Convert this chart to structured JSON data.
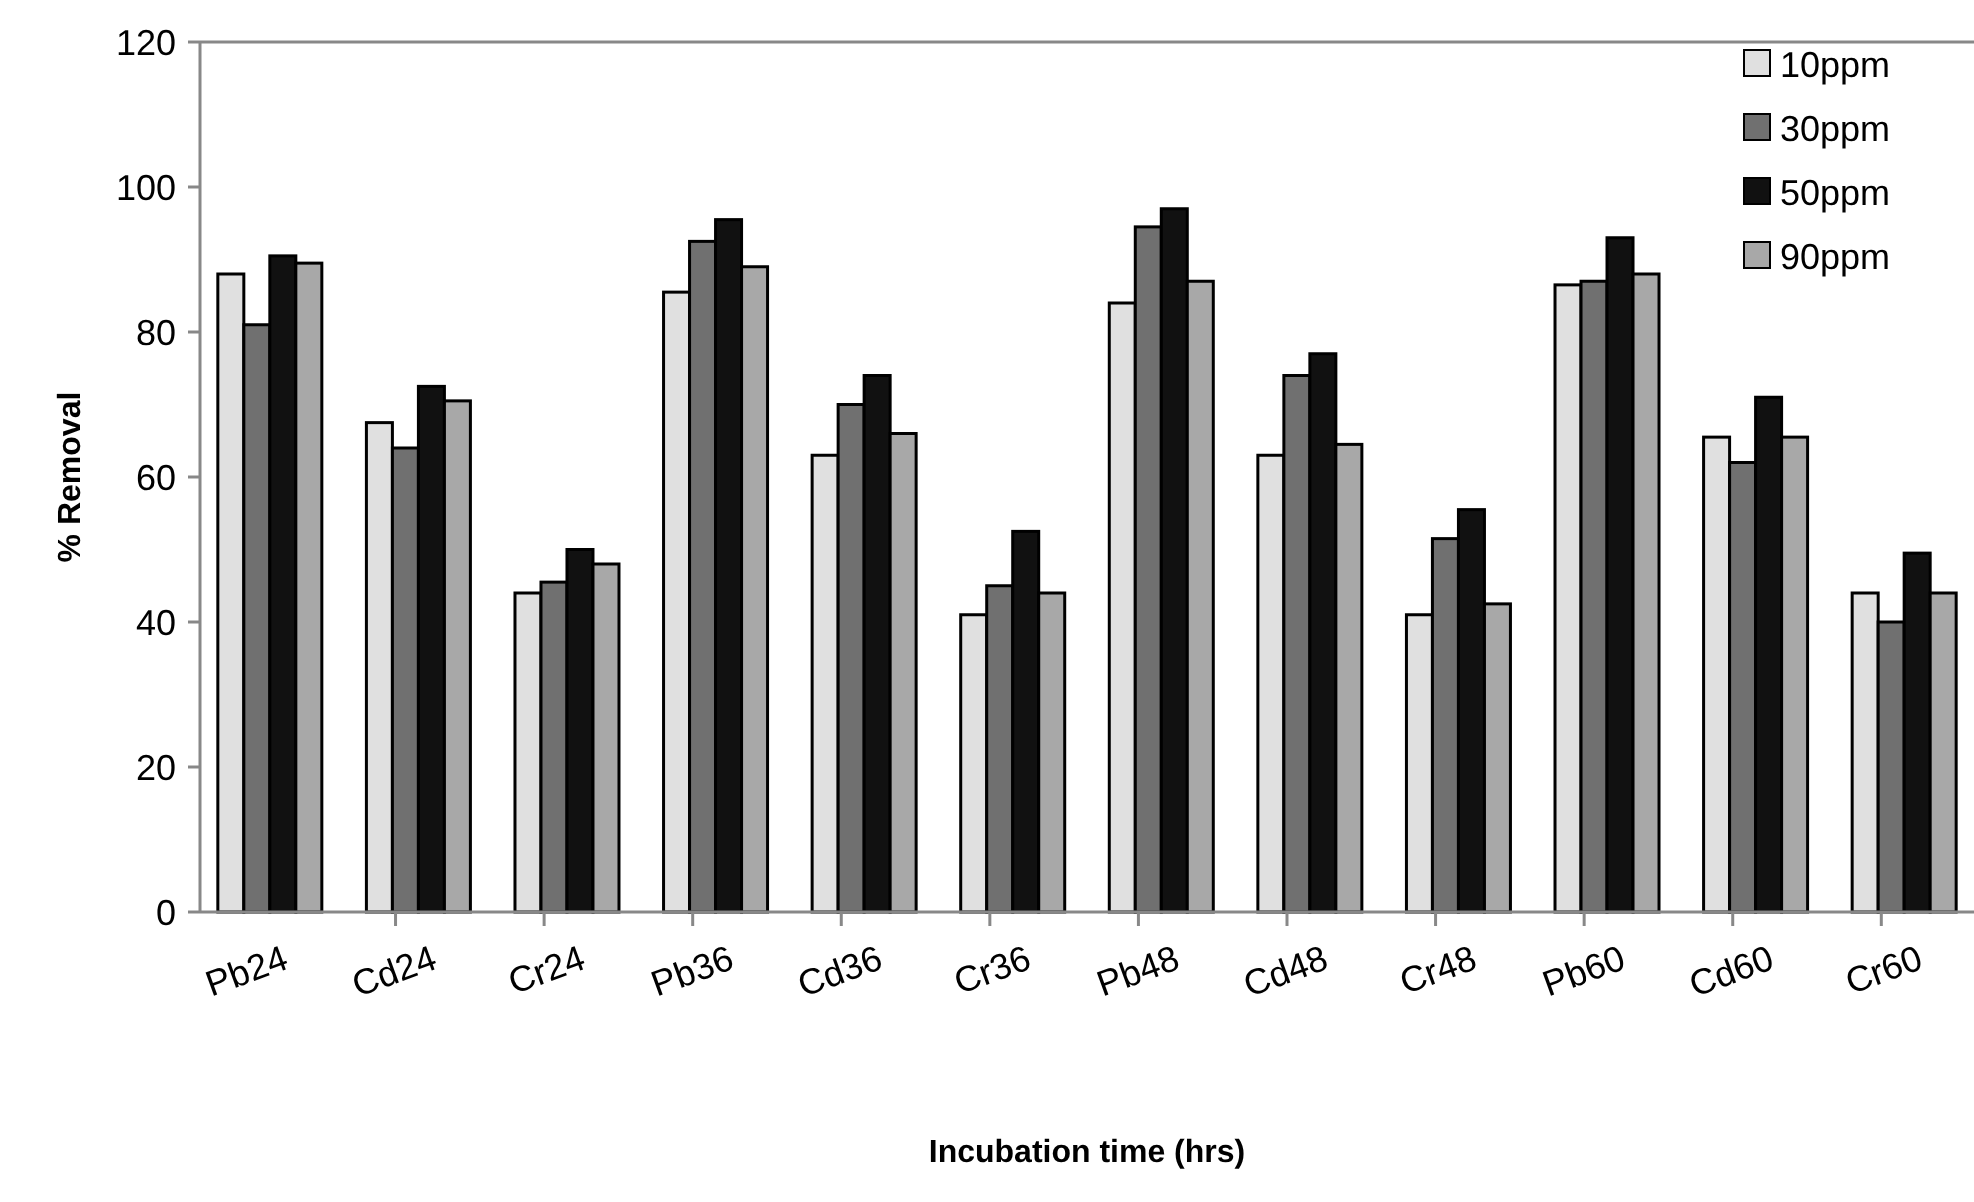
{
  "chart_data": {
    "type": "bar",
    "xlabel": "Incubation time (hrs)",
    "ylabel": "% Removal",
    "categories": [
      "Pb24",
      "Cd24",
      "Cr24",
      "Pb36",
      "Cd36",
      "Cr36",
      "Pb48",
      "Cd48",
      "Cr48",
      "Pb60",
      "Cd60",
      "Cr60"
    ],
    "series": [
      {
        "name": "10ppm",
        "color": "#e0e0e0",
        "values": [
          88,
          67.5,
          44,
          85.5,
          63,
          41,
          84,
          63,
          41,
          86.5,
          65.5,
          44
        ]
      },
      {
        "name": "30ppm",
        "color": "#707070",
        "values": [
          81,
          64,
          45.5,
          92.5,
          70,
          45,
          94.5,
          74,
          51.5,
          87,
          62,
          40
        ]
      },
      {
        "name": "50ppm",
        "color": "#111111",
        "values": [
          90.5,
          72.5,
          50,
          95.5,
          74,
          52.5,
          97,
          77,
          55.5,
          93,
          71,
          49.5
        ]
      },
      {
        "name": "90ppm",
        "color": "#a8a8a8",
        "values": [
          89.5,
          70.5,
          48,
          89,
          66,
          44,
          87,
          64.5,
          42.5,
          88,
          65.5,
          44
        ]
      }
    ],
    "ylim": [
      0,
      120
    ],
    "yticks": [
      0,
      20,
      40,
      60,
      80,
      100,
      120
    ],
    "grid": false,
    "legend": "top right"
  }
}
